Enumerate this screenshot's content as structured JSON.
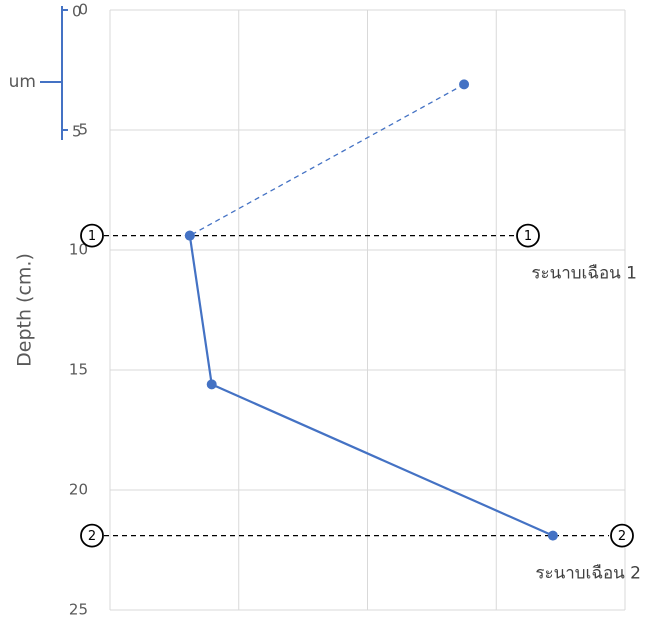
{
  "chart_data": {
    "type": "line",
    "y_label": "Depth (cm.)",
    "ylim": [
      0,
      25
    ],
    "yticks": [
      0,
      5,
      10,
      15,
      20,
      25
    ],
    "y_inverted": true,
    "xlim": [
      0,
      4
    ],
    "xticks": [
      0,
      1,
      2,
      3,
      4
    ],
    "grid": true,
    "series": [
      {
        "color": "#4472c4",
        "style": "dashed",
        "x": [
          2.75,
          0.62
        ],
        "values": [
          3.1,
          9.4
        ]
      },
      {
        "color": "#4472c4",
        "style": "solid",
        "x": [
          0.62,
          0.79,
          3.44
        ],
        "values": [
          9.4,
          15.6,
          21.9
        ]
      }
    ],
    "reference_lines": [
      {
        "y": 9.4,
        "marker": "1",
        "text": "ระนาบเฉือน 1"
      },
      {
        "y": 21.9,
        "marker": "2",
        "text": "ระนาบเฉือน 2"
      }
    ],
    "inset": {
      "label": "um",
      "ticks": [
        0,
        5
      ]
    }
  }
}
